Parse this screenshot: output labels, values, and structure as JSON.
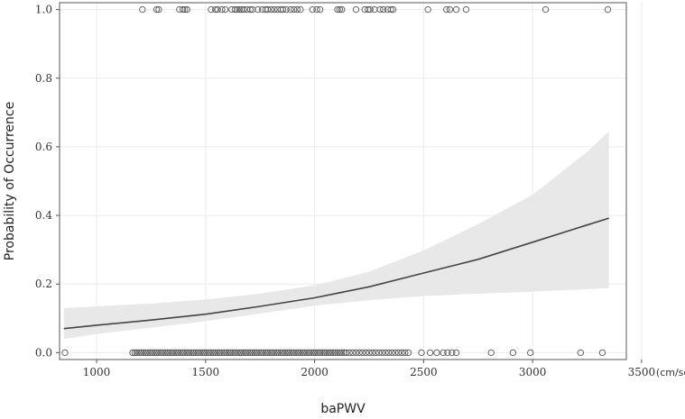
{
  "chart_data": {
    "type": "scatter",
    "xlabel": "baPWV",
    "ylabel": "Probability of Occurrence",
    "x_unit": "(cm/sec)",
    "xlim": [
      830,
      3430
    ],
    "ylim": [
      -0.02,
      1.02
    ],
    "x_ticks": [
      1000,
      1500,
      2000,
      2500,
      3000,
      3500
    ],
    "y_ticks": [
      0.0,
      0.2,
      0.4,
      0.6,
      0.8,
      1.0
    ],
    "x_tick_labels": [
      "1000",
      "1500",
      "2000",
      "2500",
      "3000",
      "3500"
    ],
    "y_tick_labels": [
      "0.0",
      "0.2",
      "0.4",
      "0.6",
      "0.8",
      "1.0"
    ],
    "grid": true,
    "colors": {
      "points": "#555555",
      "curve": "#444444",
      "band": "#e8e8e8",
      "grid": "#ececec",
      "frame": "#555555"
    },
    "fit_curve": {
      "x": [
        850,
        1000,
        1250,
        1500,
        1750,
        2000,
        2250,
        2500,
        2750,
        3000,
        3250,
        3350
      ],
      "y": [
        0.07,
        0.08,
        0.095,
        0.112,
        0.135,
        0.16,
        0.192,
        0.232,
        0.272,
        0.322,
        0.372,
        0.392
      ]
    },
    "confidence_band": {
      "x": [
        850,
        1000,
        1250,
        1500,
        1750,
        2000,
        2250,
        2500,
        2750,
        3000,
        3250,
        3350
      ],
      "lower": [
        0.04,
        0.054,
        0.073,
        0.092,
        0.114,
        0.137,
        0.153,
        0.165,
        0.172,
        0.178,
        0.185,
        0.188
      ],
      "upper": [
        0.13,
        0.135,
        0.143,
        0.155,
        0.172,
        0.196,
        0.236,
        0.298,
        0.375,
        0.46,
        0.585,
        0.645
      ]
    },
    "events_y1": {
      "y": 1,
      "x": [
        1210,
        1275,
        1285,
        1380,
        1395,
        1405,
        1415,
        1525,
        1545,
        1555,
        1575,
        1590,
        1620,
        1635,
        1645,
        1655,
        1665,
        1675,
        1690,
        1705,
        1715,
        1740,
        1760,
        1775,
        1785,
        1800,
        1815,
        1830,
        1845,
        1855,
        1870,
        1890,
        1905,
        1920,
        1935,
        1990,
        2010,
        2025,
        2105,
        2115,
        2125,
        2190,
        2230,
        2245,
        2255,
        2275,
        2300,
        2315,
        2335,
        2350,
        2360,
        2520,
        2605,
        2620,
        2650,
        2695,
        3060,
        3345
      ]
    },
    "events_y0": {
      "y": 0,
      "x": [
        855,
        1165,
        1175,
        1185,
        1195,
        1205,
        1215,
        1225,
        1235,
        1245,
        1255,
        1265,
        1275,
        1285,
        1295,
        1305,
        1315,
        1325,
        1335,
        1345,
        1355,
        1365,
        1375,
        1385,
        1395,
        1405,
        1415,
        1425,
        1435,
        1445,
        1455,
        1465,
        1475,
        1485,
        1495,
        1505,
        1515,
        1525,
        1535,
        1545,
        1555,
        1565,
        1575,
        1585,
        1595,
        1605,
        1615,
        1625,
        1635,
        1645,
        1655,
        1665,
        1675,
        1685,
        1695,
        1705,
        1715,
        1725,
        1735,
        1745,
        1755,
        1765,
        1775,
        1785,
        1795,
        1805,
        1815,
        1825,
        1835,
        1845,
        1855,
        1865,
        1875,
        1885,
        1895,
        1905,
        1915,
        1925,
        1935,
        1945,
        1955,
        1965,
        1975,
        1985,
        1995,
        2005,
        2015,
        2025,
        2035,
        2045,
        2055,
        2065,
        2075,
        2085,
        2095,
        2105,
        2115,
        2125,
        2135,
        2145,
        2160,
        2175,
        2190,
        2205,
        2220,
        2235,
        2250,
        2265,
        2280,
        2295,
        2310,
        2325,
        2340,
        2355,
        2370,
        2385,
        2400,
        2415,
        2430,
        2490,
        2530,
        2560,
        2590,
        2610,
        2630,
        2650,
        2810,
        2910,
        2990,
        3220,
        3320
      ]
    }
  }
}
